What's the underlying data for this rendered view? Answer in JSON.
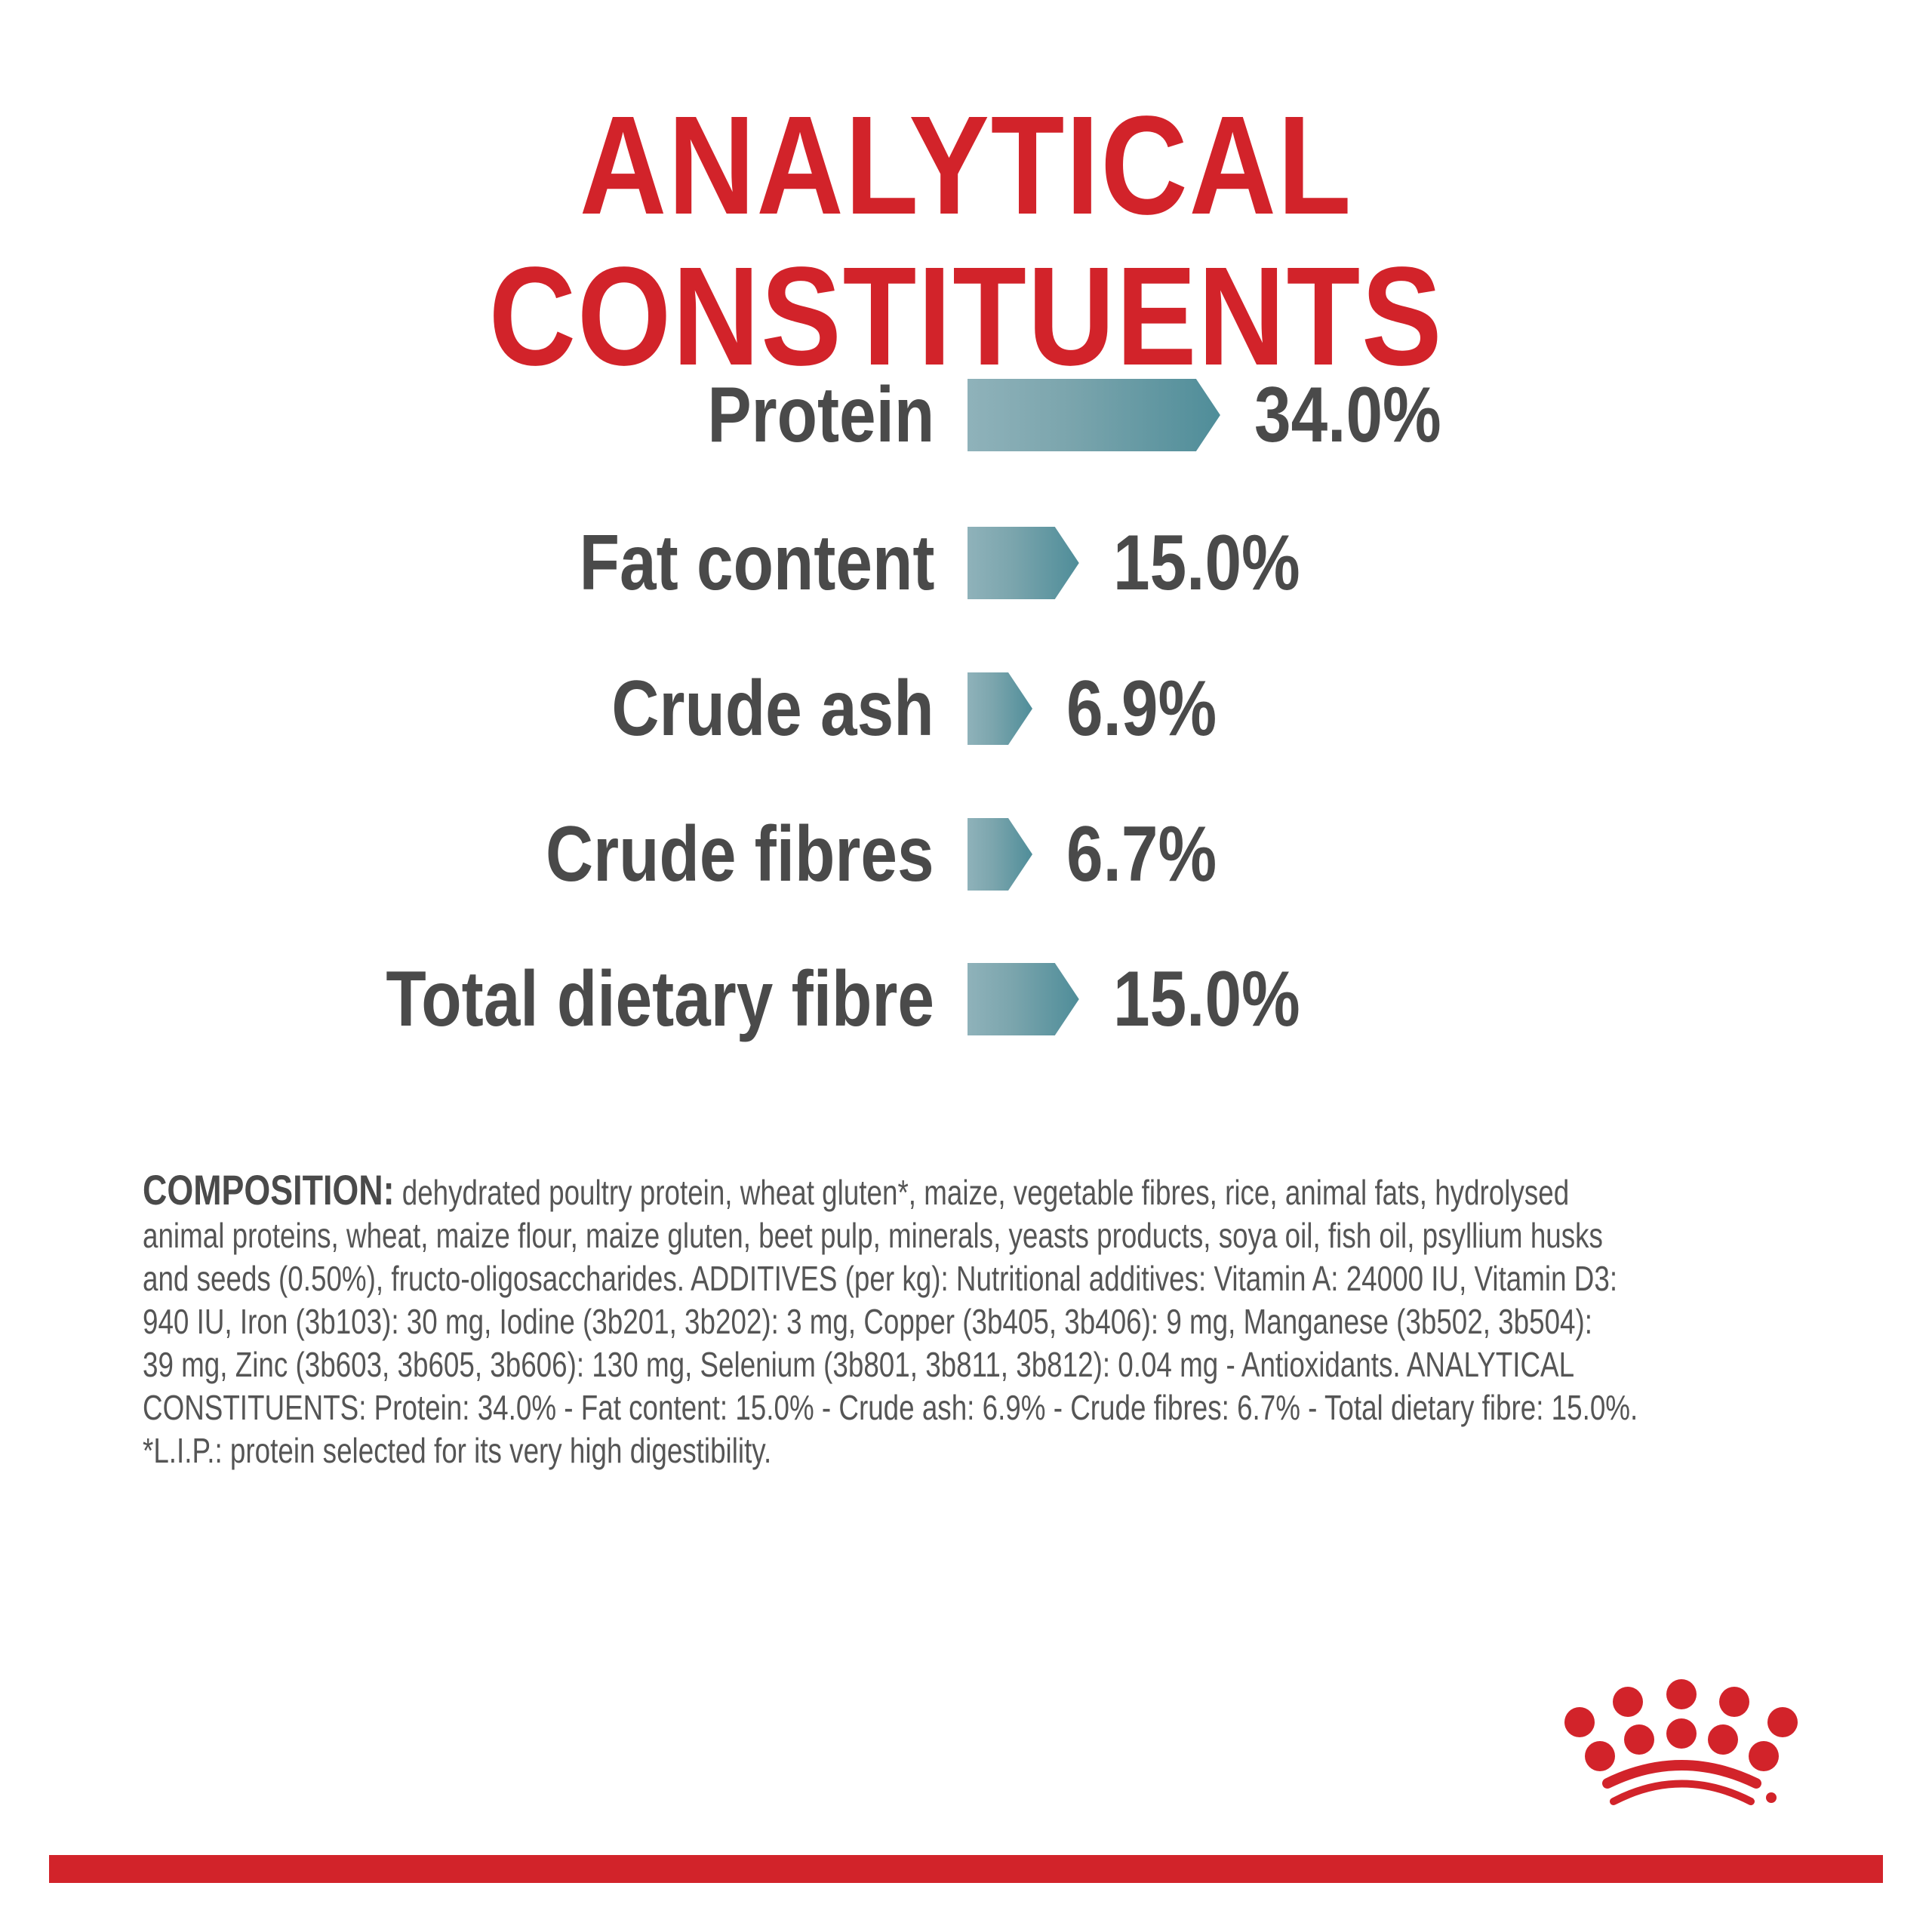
{
  "title": "ANALYTICAL CONSTITUENTS",
  "constituents": [
    {
      "label": "Protein",
      "value": "34.0%",
      "percent": 34.0
    },
    {
      "label": "Fat content",
      "value": "15.0%",
      "percent": 15.0
    },
    {
      "label": "Crude ash",
      "value": "6.9%",
      "percent": 6.9
    },
    {
      "label": "Crude fibres",
      "value": "6.7%",
      "percent": 6.7
    },
    {
      "label": "Total dietary fibre",
      "value": "15.0%",
      "percent": 15.0
    }
  ],
  "composition": {
    "heading": "COMPOSITION:",
    "lines": [
      "dehydrated poultry protein, wheat gluten*, maize, vegetable fibres, rice, animal fats, hydrolysed",
      "animal proteins, wheat, maize flour, maize gluten, beet pulp, minerals, yeasts products, soya oil, fish oil, psyllium husks",
      "and seeds (0.50%), fructo-oligosaccharides. ADDITIVES (per kg): Nutritional additives: Vitamin A: 24000 IU, Vitamin D3:",
      "940 IU, Iron (3b103): 30 mg, Iodine (3b201, 3b202): 3 mg, Copper (3b405, 3b406): 9 mg, Manganese (3b502, 3b504):",
      "39 mg, Zinc (3b603, 3b605, 3b606): 130 mg, Selenium (3b801, 3b811, 3b812): 0.04 mg - Antioxidants. ANALYTICAL",
      "CONSTITUENTS: Protein: 34.0% - Fat content: 15.0% - Crude ash: 6.9% - Crude fibres: 6.7% - Total dietary fibre: 15.0%.",
      "*L.I.P.: protein selected for its very high digestibility."
    ]
  },
  "colors": {
    "brand_red": "#d2232a",
    "bar_teal": "#4f8d99",
    "text": "#4a4a4a"
  },
  "logo": {
    "name": "crown-logo",
    "mark": "®"
  }
}
